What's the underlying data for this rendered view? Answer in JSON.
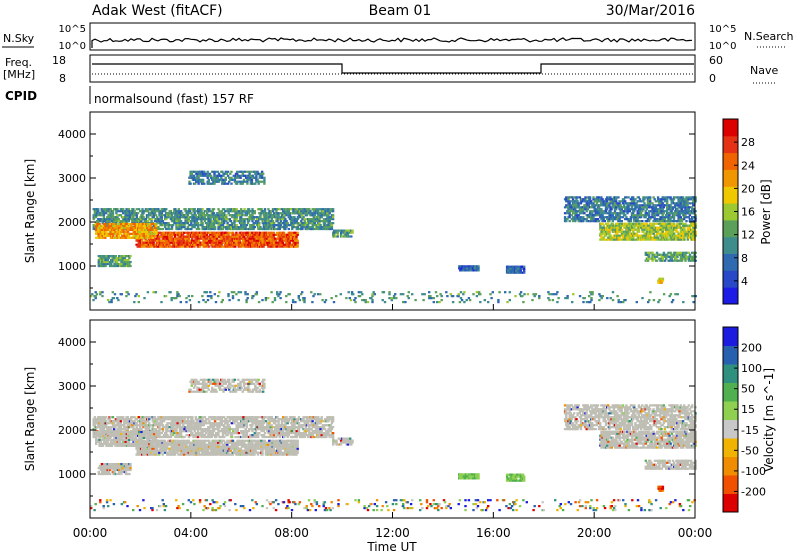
{
  "header": {
    "station": "Adak West (fitACF)",
    "beam": "Beam 01",
    "date": "30/Mar/2016"
  },
  "panels": {
    "nsky": {
      "left_label": "N.Sky",
      "right_label": "N.Search",
      "tick_hi": "10^5",
      "tick_lo": "10^0"
    },
    "freq": {
      "left_label_1": "Freq.",
      "left_label_2": "[MHz]",
      "right_label": "Nave",
      "left_ticks": [
        "18",
        "8"
      ],
      "right_ticks": [
        "60",
        "0"
      ]
    },
    "cpid": {
      "label": "CPID",
      "program": "normalsound (fast) 157 RF"
    }
  },
  "colors": {
    "power": [
      "#1c1ce6",
      "#2848c8",
      "#2f6ab0",
      "#3f8c8c",
      "#5aa05a",
      "#9cc832",
      "#f0c800",
      "#f09600",
      "#f06400",
      "#e63214",
      "#dc0000"
    ],
    "velocity": [
      "#dc0000",
      "#f05000",
      "#f08c00",
      "#f0b400",
      "#c8c8c8",
      "#90d050",
      "#50b050",
      "#309080",
      "#2860b0",
      "#1c1ce0"
    ],
    "ground": "#bebeb4"
  },
  "chart_data": [
    {
      "type": "heatmap",
      "name": "power",
      "ylabel": "Slant Range [km]",
      "ylim": [
        0,
        4500
      ],
      "y_ticks": [
        "1000",
        "2000",
        "3000",
        "4000"
      ],
      "colorbar_label": "Power [dB]",
      "colorbar_ticks": [
        "4",
        "8",
        "12",
        "16",
        "20",
        "24",
        "28"
      ],
      "clim": [
        0,
        32
      ]
    },
    {
      "type": "heatmap",
      "name": "velocity",
      "ylabel": "Slant Range [km]",
      "ylim": [
        0,
        4500
      ],
      "y_ticks": [
        "1000",
        "2000",
        "3000",
        "4000"
      ],
      "colorbar_label": "Velocity [m s^-1]",
      "colorbar_ticks": [
        "-200",
        "-100",
        "-50",
        "-15",
        "15",
        "50",
        "100",
        "200"
      ],
      "xlabel": "Time UT",
      "x_ticks": [
        "00:00",
        "04:00",
        "08:00",
        "12:00",
        "16:00",
        "20:00",
        "00:00"
      ],
      "xlim": [
        0,
        24
      ]
    }
  ],
  "scatter_regions": [
    {
      "t0": 0.1,
      "t1": 9.6,
      "r0": 1820,
      "r1": 2280,
      "p": 10,
      "v": "ground",
      "d": 0.6
    },
    {
      "t0": 1.8,
      "t1": 8.2,
      "r0": 1420,
      "r1": 1760,
      "p": 27,
      "v": "ground",
      "d": 0.8
    },
    {
      "t0": 0.2,
      "t1": 2.6,
      "r0": 1620,
      "r1": 1950,
      "p": 22,
      "v": "ground",
      "d": 0.7
    },
    {
      "t0": 0.3,
      "t1": 1.6,
      "r0": 980,
      "r1": 1240,
      "p": 12,
      "v": "ground",
      "d": 0.7
    },
    {
      "t0": 3.9,
      "t1": 6.9,
      "r0": 2850,
      "r1": 3150,
      "p": 8,
      "v": "ground",
      "d": 0.5
    },
    {
      "t0": 9.6,
      "t1": 10.4,
      "r0": 1650,
      "r1": 1820,
      "p": 12,
      "v": "ground",
      "d": 0.6
    },
    {
      "t0": 18.8,
      "t1": 24.0,
      "r0": 2000,
      "r1": 2550,
      "p": 8,
      "v": "ground",
      "d": 0.55
    },
    {
      "t0": 20.2,
      "t1": 24.0,
      "r0": 1580,
      "r1": 1950,
      "p": 16,
      "v": "ground",
      "d": 0.7
    },
    {
      "t0": 22.0,
      "t1": 24.0,
      "r0": 1100,
      "r1": 1300,
      "p": 12,
      "v": "ground",
      "d": 0.6
    },
    {
      "t0": 14.6,
      "t1": 15.4,
      "r0": 880,
      "r1": 1000,
      "p": 6,
      "v": "pos",
      "d": 0.9
    },
    {
      "t0": 16.5,
      "t1": 17.2,
      "r0": 830,
      "r1": 980,
      "p": 6,
      "v": "pos",
      "d": 0.9
    },
    {
      "t0": 22.5,
      "t1": 22.7,
      "r0": 600,
      "r1": 720,
      "p": 20,
      "v": "neg",
      "d": 0.9
    },
    {
      "t0": 0.0,
      "t1": 24.0,
      "r0": 160,
      "r1": 400,
      "p": 10,
      "v": "mixed",
      "d": 0.1
    }
  ]
}
